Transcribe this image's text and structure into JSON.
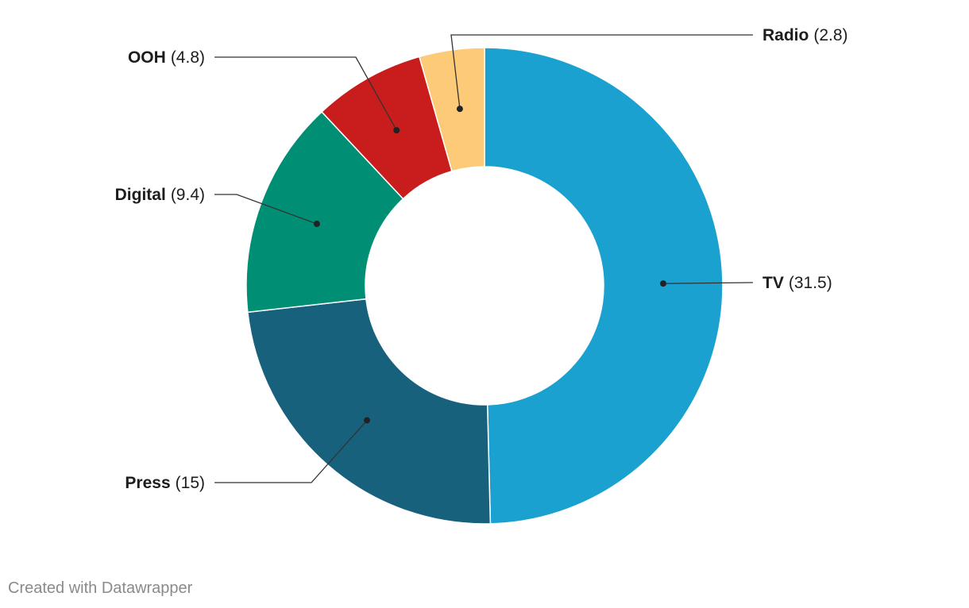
{
  "chart_data": {
    "type": "pie",
    "donut": true,
    "categories": [
      "TV",
      "Press",
      "Digital",
      "OOH",
      "Radio"
    ],
    "values": [
      31.5,
      15,
      9.4,
      4.8,
      2.8
    ],
    "value_labels": [
      "(31.5)",
      "(15)",
      "(9.4)",
      "(4.8)",
      "(2.8)"
    ],
    "colors": [
      "#1aa1cf",
      "#17617d",
      "#008f74",
      "#c91c1c",
      "#fdca78"
    ],
    "start_angle_deg": 0,
    "direction": "clockwise",
    "legend": "none"
  },
  "footer": {
    "credit": "Created with Datawrapper"
  }
}
